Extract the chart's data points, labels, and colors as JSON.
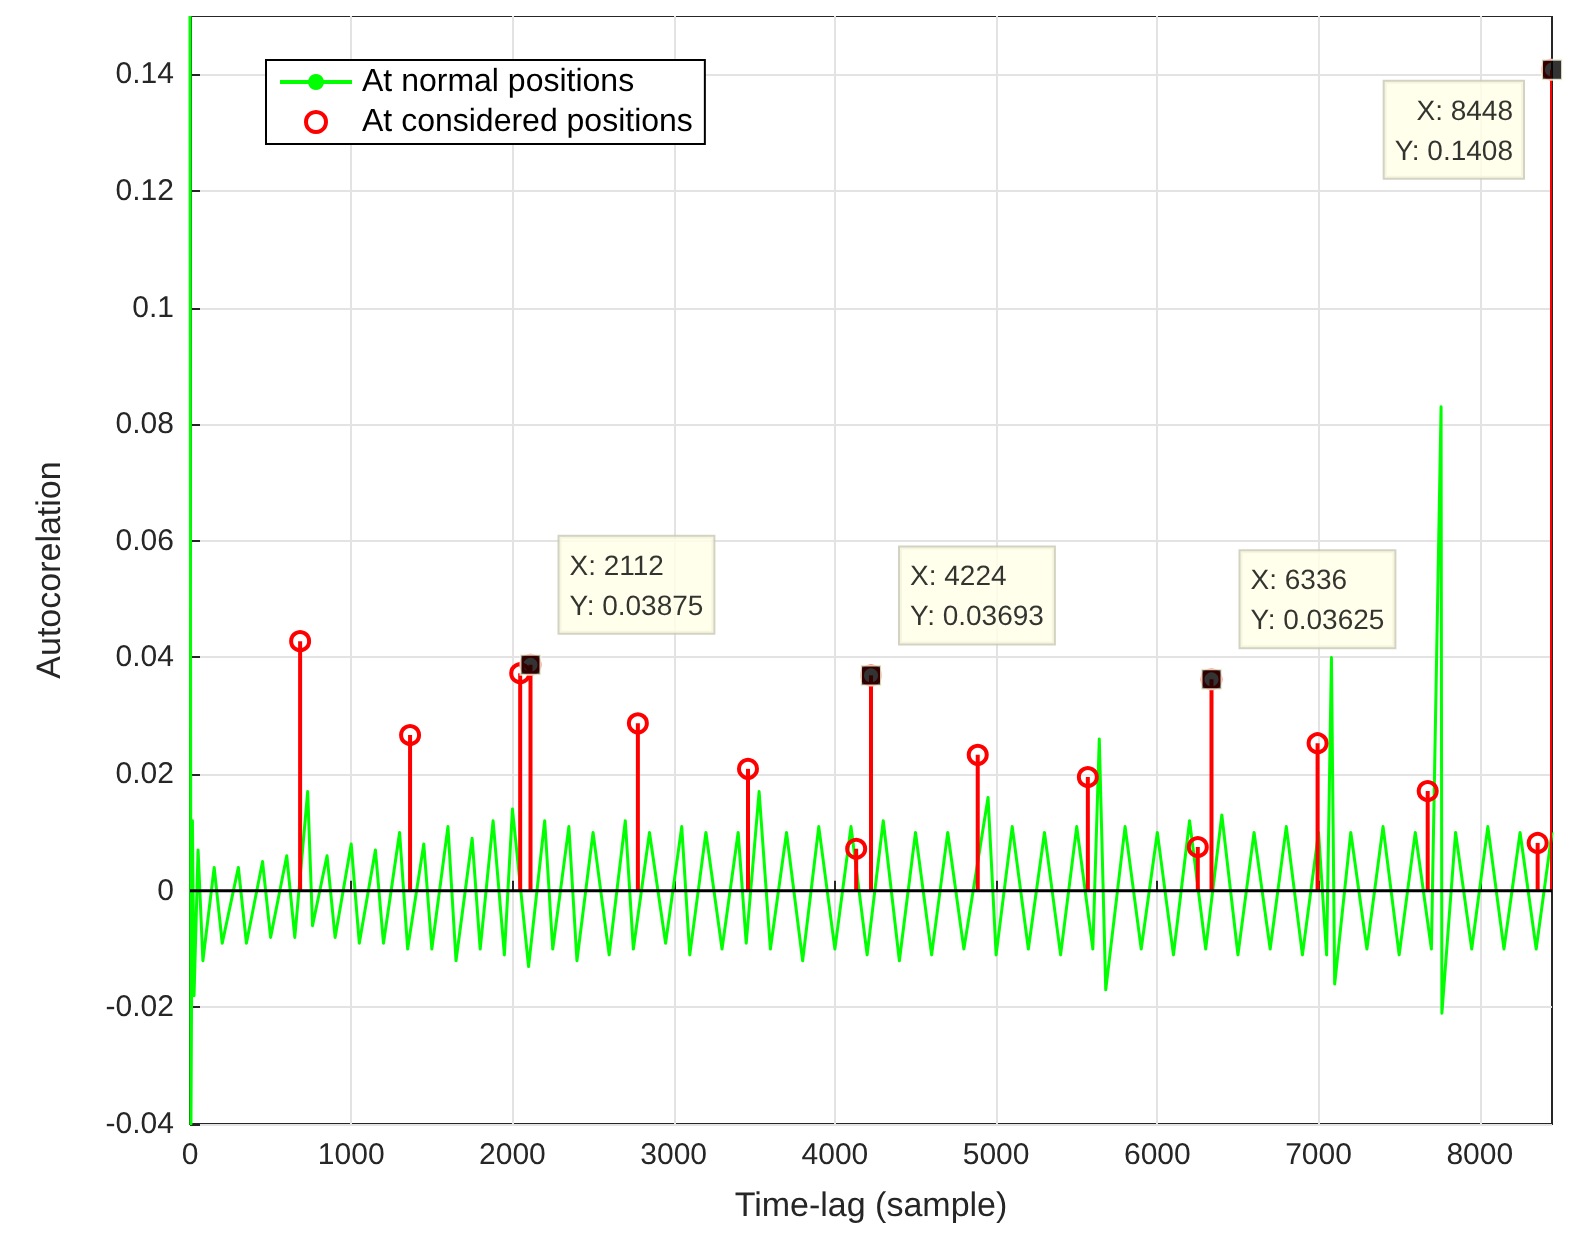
{
  "chart_data": {
    "type": "line",
    "xlabel": "Time-lag (sample)",
    "ylabel": "Autocorelation",
    "xlim": [
      0,
      8448
    ],
    "xticks": [
      0,
      1000,
      2000,
      3000,
      4000,
      5000,
      6000,
      7000,
      8000
    ],
    "ylim": [
      -0.04,
      0.15
    ],
    "yticks": [
      -0.04,
      -0.02,
      0,
      0.02,
      0.04,
      0.06,
      0.08,
      0.1,
      0.12,
      0.14
    ],
    "grid": true,
    "legend": "top left",
    "series": [
      {
        "name": "At normal positions",
        "color": "#00ff00",
        "marker": "none",
        "x": [
          0,
          6,
          15,
          25,
          50,
          80,
          150,
          200,
          300,
          350,
          450,
          500,
          600,
          650,
          730,
          760,
          850,
          900,
          1000,
          1050,
          1150,
          1200,
          1300,
          1350,
          1450,
          1500,
          1600,
          1650,
          1750,
          1800,
          1880,
          1950,
          2000,
          2100,
          2200,
          2250,
          2350,
          2400,
          2500,
          2600,
          2700,
          2750,
          2850,
          2950,
          3050,
          3100,
          3200,
          3300,
          3400,
          3450,
          3530,
          3600,
          3700,
          3800,
          3900,
          4000,
          4100,
          4200,
          4300,
          4400,
          4500,
          4600,
          4700,
          4800,
          4950,
          5000,
          5100,
          5200,
          5300,
          5400,
          5500,
          5600,
          5640,
          5680,
          5800,
          5900,
          6000,
          6100,
          6200,
          6300,
          6400,
          6500,
          6600,
          6700,
          6800,
          6900,
          7000,
          7050,
          7080,
          7100,
          7200,
          7300,
          7400,
          7500,
          7600,
          7700,
          7760,
          7765,
          7850,
          7950,
          8050,
          8150,
          8250,
          8350,
          8448
        ],
        "values": [
          0.15,
          -0.04,
          0.012,
          -0.018,
          0.007,
          -0.012,
          0.004,
          -0.009,
          0.004,
          -0.009,
          0.005,
          -0.008,
          0.006,
          -0.008,
          0.017,
          -0.006,
          0.006,
          -0.008,
          0.008,
          -0.009,
          0.007,
          -0.009,
          0.01,
          -0.01,
          0.008,
          -0.01,
          0.011,
          -0.012,
          0.009,
          -0.01,
          0.012,
          -0.011,
          0.014,
          -0.013,
          0.012,
          -0.01,
          0.011,
          -0.012,
          0.01,
          -0.011,
          0.012,
          -0.01,
          0.01,
          -0.009,
          0.011,
          -0.011,
          0.01,
          -0.01,
          0.01,
          -0.009,
          0.017,
          -0.01,
          0.01,
          -0.012,
          0.011,
          -0.01,
          0.011,
          -0.011,
          0.012,
          -0.012,
          0.01,
          -0.011,
          0.01,
          -0.01,
          0.016,
          -0.011,
          0.011,
          -0.01,
          0.01,
          -0.011,
          0.011,
          -0.01,
          0.026,
          -0.017,
          0.011,
          -0.01,
          0.01,
          -0.011,
          0.012,
          -0.01,
          0.013,
          -0.011,
          0.01,
          -0.01,
          0.011,
          -0.011,
          0.01,
          -0.011,
          0.04,
          -0.016,
          0.01,
          -0.01,
          0.011,
          -0.011,
          0.01,
          -0.01,
          0.083,
          -0.021,
          0.01,
          -0.01,
          0.011,
          -0.01,
          0.01,
          -0.01,
          0.01
        ]
      },
      {
        "name": "At considered positions",
        "type": "lollipop",
        "color": "#ff0000",
        "marker": "circle",
        "x": [
          683,
          1365,
          2048,
          2112,
          2778,
          3461,
          4132,
          4224,
          4886,
          5569,
          6251,
          6336,
          6994,
          7677,
          8359,
          8448
        ],
        "values": [
          0.0428,
          0.0267,
          0.0373,
          0.03875,
          0.0287,
          0.0209,
          0.0072,
          0.03693,
          0.0233,
          0.0195,
          0.0075,
          0.03625,
          0.0253,
          0.0171,
          0.0082,
          0.1408
        ]
      }
    ],
    "ref_lines": [
      {
        "axis": "y",
        "value": 0,
        "color": "#000000"
      }
    ],
    "annotations": [
      {
        "text": "X: 2112\nY: 0.03875",
        "x": 2112,
        "y": 0.03875
      },
      {
        "text": "X: 4224\nY: 0.03693",
        "x": 4224,
        "y": 0.03693
      },
      {
        "text": "X: 6336\nY: 0.03625",
        "x": 6336,
        "y": 0.03625
      },
      {
        "text": "X: 8448\nY: 0.1408",
        "x": 8448,
        "y": 0.1408
      }
    ]
  }
}
